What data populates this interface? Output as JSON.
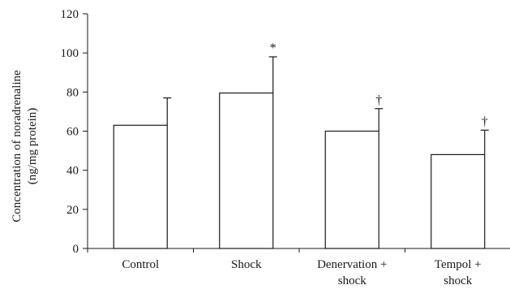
{
  "chart_data": {
    "type": "bar",
    "categories": [
      [
        "Control"
      ],
      [
        "Shock"
      ],
      [
        "Denervation +",
        "shock"
      ],
      [
        "Tempol +",
        "shock"
      ]
    ],
    "values": [
      63,
      79.5,
      60,
      48
    ],
    "error_upper": [
      77,
      98,
      71.5,
      60.5
    ],
    "annotations": [
      "",
      "*",
      "†",
      "†"
    ],
    "ylabel_lines": [
      "Concentration of noradrenaline",
      "(ng/mg protein)"
    ],
    "ylim": [
      0,
      120
    ],
    "yticks": [
      0,
      20,
      40,
      60,
      80,
      100,
      120
    ],
    "bar_color": "#ffffff",
    "line_color": "#1a1a1a"
  }
}
